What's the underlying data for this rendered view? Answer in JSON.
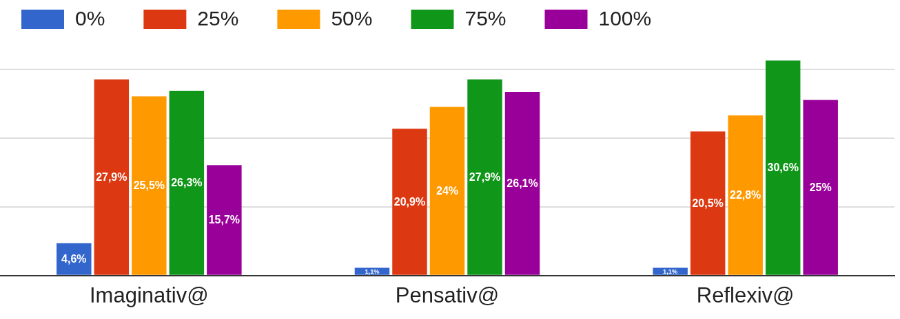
{
  "chart_data": {
    "type": "bar",
    "categories": [
      "Imaginativ@",
      "Pensativ@",
      "Reflexiv@"
    ],
    "series": [
      {
        "name": "0%",
        "color": "#3366cc",
        "values": [
          4.6,
          1.1,
          1.1
        ],
        "value_labels": [
          "4,6%",
          "1,1%",
          "1,1%"
        ]
      },
      {
        "name": "25%",
        "color": "#dc3912",
        "values": [
          27.9,
          20.9,
          20.5
        ],
        "value_labels": [
          "27,9%",
          "20,9%",
          "20,5%"
        ]
      },
      {
        "name": "50%",
        "color": "#ff9900",
        "values": [
          25.5,
          24,
          22.8
        ],
        "value_labels": [
          "25,5%",
          "24%",
          "22,8%"
        ]
      },
      {
        "name": "75%",
        "color": "#109618",
        "values": [
          26.3,
          27.9,
          30.6
        ],
        "value_labels": [
          "26,3%",
          "27,9%",
          "30,6%"
        ]
      },
      {
        "name": "100%",
        "color": "#990099",
        "values": [
          15.7,
          26.1,
          25
        ],
        "value_labels": [
          "15,7%",
          "26,1%",
          "25%"
        ]
      }
    ],
    "yticks": [
      {
        "value": 0,
        "label": null
      },
      {
        "value": 9.8,
        "label": null
      },
      {
        "value": 19.5,
        "label": null
      },
      {
        "value": 29.3,
        "label": null
      }
    ],
    "grid": "y",
    "legend": "top left",
    "tick_labels": "x"
  }
}
